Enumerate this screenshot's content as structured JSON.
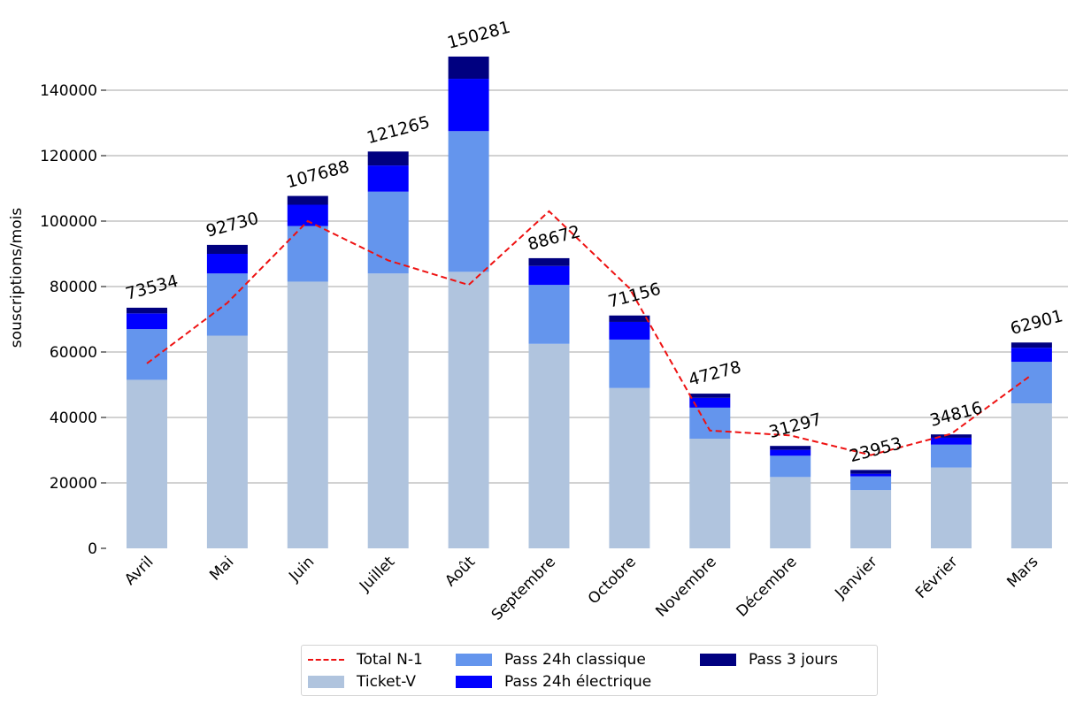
{
  "chart_data": {
    "type": "bar",
    "stacked": true,
    "title": "",
    "xlabel": "",
    "ylabel": "souscriptions/mois",
    "ylim": [
      0,
      152000
    ],
    "yticks": [
      0,
      20000,
      40000,
      60000,
      80000,
      100000,
      120000,
      140000
    ],
    "ytick_labels": [
      "0",
      "20000",
      "40000",
      "60000",
      "80000",
      "100000",
      "120000",
      "140000"
    ],
    "grid": "horizontal",
    "legend_position": "bottom-center",
    "categories": [
      "Avril",
      "Mai",
      "Juin",
      "Juillet",
      "Août",
      "Septembre",
      "Octobre",
      "Novembre",
      "Décembre",
      "Janvier",
      "Février",
      "Mars"
    ],
    "series": [
      {
        "name": "Ticket-V",
        "color": "#b0c4de",
        "values": [
          51500,
          65000,
          81500,
          84000,
          84500,
          62500,
          49000,
          33500,
          21800,
          17800,
          24700,
          44300
        ]
      },
      {
        "name": "Pass 24h classique",
        "color": "#6495ed",
        "values": [
          15500,
          19000,
          17000,
          25000,
          43000,
          18000,
          14800,
          9500,
          6500,
          4200,
          7000,
          12700
        ]
      },
      {
        "name": "Pass 24h électrique",
        "color": "#0000ff",
        "values": [
          4800,
          6000,
          6500,
          8000,
          16000,
          5800,
          5400,
          3000,
          1800,
          800,
          2100,
          4300
        ]
      },
      {
        "name": "Pass 3 jours",
        "color": "#000080",
        "values": [
          1734,
          2730,
          2688,
          4265,
          6781,
          2372,
          1956,
          1278,
          1197,
          1153,
          1016,
          1601
        ]
      }
    ],
    "totals": [
      73534,
      92730,
      107688,
      121265,
      150281,
      88672,
      71156,
      47278,
      31297,
      23953,
      34816,
      62901
    ],
    "total_labels": [
      "73534",
      "92730",
      "107688",
      "121265",
      "150281",
      "88672",
      "71156",
      "47278",
      "31297",
      "23953",
      "34816",
      "62901"
    ],
    "line_series": {
      "name": "Total N-1",
      "color": "#ee1111",
      "style": "dashed",
      "values": [
        56500,
        75000,
        100000,
        88000,
        80500,
        103000,
        79500,
        36000,
        34500,
        28500,
        35000,
        53000
      ]
    }
  },
  "legend": {
    "items": [
      {
        "label": "Total N-1",
        "kind": "line",
        "color": "#ee1111"
      },
      {
        "label": "Ticket-V",
        "kind": "box",
        "color": "#b0c4de"
      },
      {
        "label": "Pass 24h classique",
        "kind": "box",
        "color": "#6495ed"
      },
      {
        "label": "Pass 24h électrique",
        "kind": "box",
        "color": "#0000ff"
      },
      {
        "label": "Pass 3 jours",
        "kind": "box",
        "color": "#000080"
      }
    ]
  }
}
